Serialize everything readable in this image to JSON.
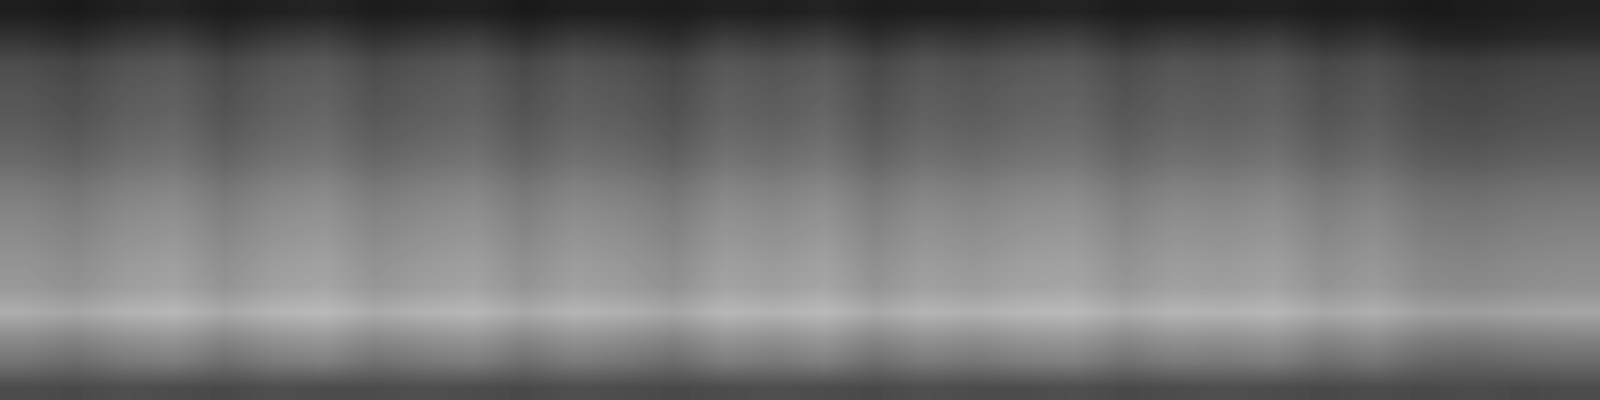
{
  "chart_data": {
    "type": "heatmap",
    "tick_labels": false,
    "color": "gray",
    "color_range": [
      0,
      1
    ],
    "cells": [
      [
        0.12,
        0.1,
        0.13,
        0.14,
        0.11,
        0.13,
        0.14,
        0.11,
        0.12,
        0.13,
        0.1,
        0.12,
        0.12,
        0.11,
        0.13,
        0.12,
        0.14,
        0.11,
        0.12,
        0.12,
        0.13,
        0.14,
        0.11,
        0.12,
        0.12,
        0.13,
        0.11,
        0.12,
        0.1,
        0.11,
        0.12,
        0.13
      ],
      [
        0.2,
        0.17,
        0.22,
        0.24,
        0.18,
        0.23,
        0.25,
        0.19,
        0.22,
        0.24,
        0.18,
        0.23,
        0.21,
        0.17,
        0.24,
        0.22,
        0.25,
        0.18,
        0.23,
        0.21,
        0.24,
        0.25,
        0.19,
        0.23,
        0.22,
        0.24,
        0.18,
        0.21,
        0.15,
        0.14,
        0.16,
        0.17
      ],
      [
        0.3,
        0.27,
        0.32,
        0.34,
        0.28,
        0.33,
        0.35,
        0.29,
        0.32,
        0.34,
        0.28,
        0.33,
        0.31,
        0.27,
        0.34,
        0.32,
        0.35,
        0.28,
        0.33,
        0.31,
        0.34,
        0.35,
        0.29,
        0.33,
        0.32,
        0.34,
        0.28,
        0.31,
        0.25,
        0.24,
        0.26,
        0.27
      ],
      [
        0.33,
        0.3,
        0.35,
        0.37,
        0.31,
        0.36,
        0.38,
        0.32,
        0.35,
        0.37,
        0.31,
        0.36,
        0.34,
        0.3,
        0.37,
        0.35,
        0.38,
        0.31,
        0.36,
        0.34,
        0.37,
        0.38,
        0.32,
        0.36,
        0.35,
        0.37,
        0.31,
        0.34,
        0.28,
        0.27,
        0.29,
        0.3
      ],
      [
        0.35,
        0.32,
        0.37,
        0.39,
        0.33,
        0.38,
        0.4,
        0.34,
        0.37,
        0.39,
        0.33,
        0.38,
        0.36,
        0.32,
        0.39,
        0.37,
        0.4,
        0.33,
        0.38,
        0.36,
        0.39,
        0.4,
        0.34,
        0.38,
        0.37,
        0.39,
        0.33,
        0.36,
        0.3,
        0.29,
        0.31,
        0.32
      ],
      [
        0.38,
        0.35,
        0.4,
        0.42,
        0.36,
        0.41,
        0.43,
        0.37,
        0.4,
        0.42,
        0.36,
        0.41,
        0.39,
        0.35,
        0.42,
        0.4,
        0.43,
        0.36,
        0.41,
        0.39,
        0.42,
        0.43,
        0.37,
        0.41,
        0.4,
        0.42,
        0.36,
        0.39,
        0.33,
        0.32,
        0.34,
        0.35
      ],
      [
        0.42,
        0.39,
        0.44,
        0.46,
        0.4,
        0.45,
        0.47,
        0.41,
        0.44,
        0.46,
        0.4,
        0.45,
        0.43,
        0.39,
        0.46,
        0.44,
        0.47,
        0.4,
        0.45,
        0.43,
        0.46,
        0.47,
        0.41,
        0.45,
        0.44,
        0.46,
        0.4,
        0.43,
        0.37,
        0.36,
        0.38,
        0.39
      ],
      [
        0.48,
        0.45,
        0.5,
        0.52,
        0.46,
        0.51,
        0.53,
        0.47,
        0.5,
        0.52,
        0.46,
        0.51,
        0.49,
        0.45,
        0.52,
        0.5,
        0.53,
        0.46,
        0.51,
        0.49,
        0.52,
        0.53,
        0.47,
        0.51,
        0.5,
        0.52,
        0.46,
        0.49,
        0.43,
        0.42,
        0.44,
        0.45
      ],
      [
        0.52,
        0.49,
        0.54,
        0.56,
        0.5,
        0.55,
        0.57,
        0.51,
        0.54,
        0.56,
        0.5,
        0.55,
        0.53,
        0.49,
        0.56,
        0.54,
        0.57,
        0.5,
        0.55,
        0.53,
        0.56,
        0.57,
        0.51,
        0.55,
        0.54,
        0.56,
        0.5,
        0.53,
        0.47,
        0.46,
        0.48,
        0.49
      ],
      [
        0.55,
        0.52,
        0.57,
        0.59,
        0.53,
        0.58,
        0.6,
        0.54,
        0.57,
        0.59,
        0.53,
        0.58,
        0.56,
        0.52,
        0.59,
        0.57,
        0.6,
        0.53,
        0.58,
        0.56,
        0.59,
        0.6,
        0.54,
        0.58,
        0.57,
        0.59,
        0.53,
        0.56,
        0.5,
        0.49,
        0.51,
        0.52
      ],
      [
        0.58,
        0.55,
        0.6,
        0.62,
        0.56,
        0.61,
        0.63,
        0.57,
        0.6,
        0.62,
        0.56,
        0.61,
        0.59,
        0.55,
        0.62,
        0.6,
        0.63,
        0.56,
        0.61,
        0.59,
        0.62,
        0.63,
        0.57,
        0.61,
        0.6,
        0.62,
        0.56,
        0.59,
        0.53,
        0.52,
        0.54,
        0.55
      ],
      [
        0.6,
        0.57,
        0.62,
        0.64,
        0.58,
        0.63,
        0.65,
        0.59,
        0.62,
        0.64,
        0.58,
        0.63,
        0.61,
        0.57,
        0.64,
        0.62,
        0.65,
        0.58,
        0.63,
        0.61,
        0.64,
        0.65,
        0.59,
        0.63,
        0.62,
        0.64,
        0.58,
        0.61,
        0.55,
        0.54,
        0.56,
        0.57
      ],
      [
        0.68,
        0.65,
        0.7,
        0.72,
        0.66,
        0.71,
        0.73,
        0.67,
        0.7,
        0.72,
        0.66,
        0.71,
        0.69,
        0.65,
        0.72,
        0.7,
        0.73,
        0.66,
        0.71,
        0.69,
        0.72,
        0.73,
        0.67,
        0.71,
        0.7,
        0.72,
        0.66,
        0.69,
        0.63,
        0.62,
        0.64,
        0.65
      ],
      [
        0.55,
        0.52,
        0.57,
        0.59,
        0.53,
        0.58,
        0.6,
        0.54,
        0.57,
        0.59,
        0.53,
        0.58,
        0.56,
        0.52,
        0.59,
        0.57,
        0.6,
        0.53,
        0.58,
        0.56,
        0.59,
        0.6,
        0.54,
        0.58,
        0.57,
        0.59,
        0.53,
        0.56,
        0.5,
        0.49,
        0.51,
        0.52
      ],
      [
        0.45,
        0.42,
        0.47,
        0.49,
        0.43,
        0.48,
        0.5,
        0.44,
        0.47,
        0.49,
        0.43,
        0.48,
        0.46,
        0.42,
        0.49,
        0.47,
        0.5,
        0.43,
        0.48,
        0.46,
        0.49,
        0.5,
        0.44,
        0.48,
        0.47,
        0.49,
        0.43,
        0.46,
        0.4,
        0.39,
        0.41,
        0.42
      ],
      [
        0.3,
        0.29,
        0.31,
        0.3,
        0.29,
        0.31,
        0.3,
        0.3,
        0.31,
        0.3,
        0.29,
        0.31,
        0.3,
        0.29,
        0.3,
        0.31,
        0.3,
        0.29,
        0.31,
        0.3,
        0.3,
        0.31,
        0.29,
        0.3,
        0.31,
        0.3,
        0.29,
        0.3,
        0.29,
        0.3,
        0.29,
        0.3
      ]
    ]
  }
}
